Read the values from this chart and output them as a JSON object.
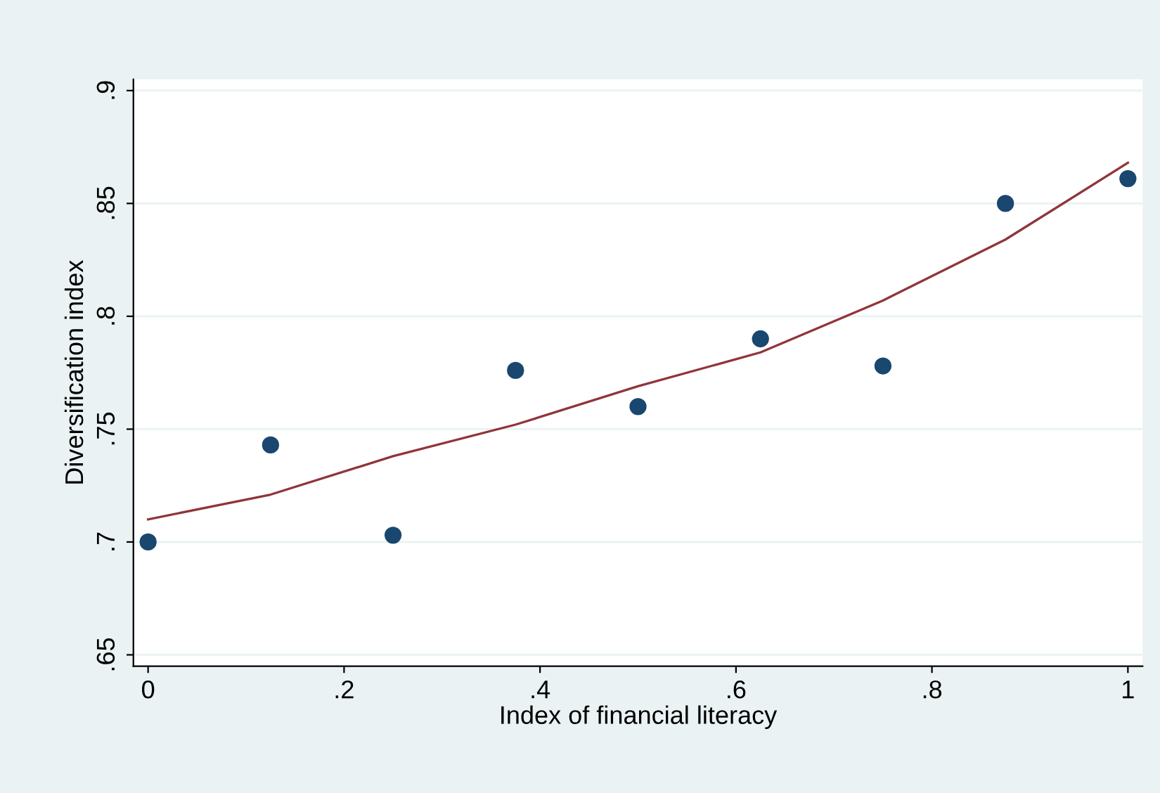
{
  "chart_data": {
    "type": "scatter",
    "xlabel": "Index of financial literacy",
    "ylabel": "Diversification index",
    "x": [
      0,
      0.125,
      0.25,
      0.375,
      0.5,
      0.625,
      0.75,
      0.875,
      1
    ],
    "series": [
      {
        "color": "#1a476f",
        "marker": "circle",
        "values": [
          0.7,
          0.743,
          0.703,
          0.776,
          0.76,
          0.79,
          0.778,
          0.85,
          0.861
        ]
      },
      {
        "type": "line",
        "color": "#90353b",
        "line_style": "solid",
        "values": [
          0.71,
          0.721,
          0.738,
          0.752,
          0.769,
          0.784,
          0.807,
          0.834,
          0.868
        ]
      }
    ],
    "xlim": [
      -0.015,
      1.015
    ],
    "ylim": [
      0.645,
      0.905
    ],
    "xticks": [
      0,
      {
        "value": 0.2,
        "label": ".2"
      },
      {
        "value": 0.4,
        "label": ".4"
      },
      {
        "value": 0.6,
        "label": ".6"
      },
      {
        "value": 0.8,
        "label": ".8"
      },
      1
    ],
    "yticks": [
      {
        "value": 0.65,
        "label": ".65"
      },
      {
        "value": 0.7,
        "label": ".7"
      },
      {
        "value": 0.75,
        "label": ".75"
      },
      {
        "value": 0.8,
        "label": ".8"
      },
      {
        "value": 0.85,
        "label": ".85"
      },
      {
        "value": 0.9,
        "label": ".9"
      }
    ],
    "grid": "y"
  }
}
